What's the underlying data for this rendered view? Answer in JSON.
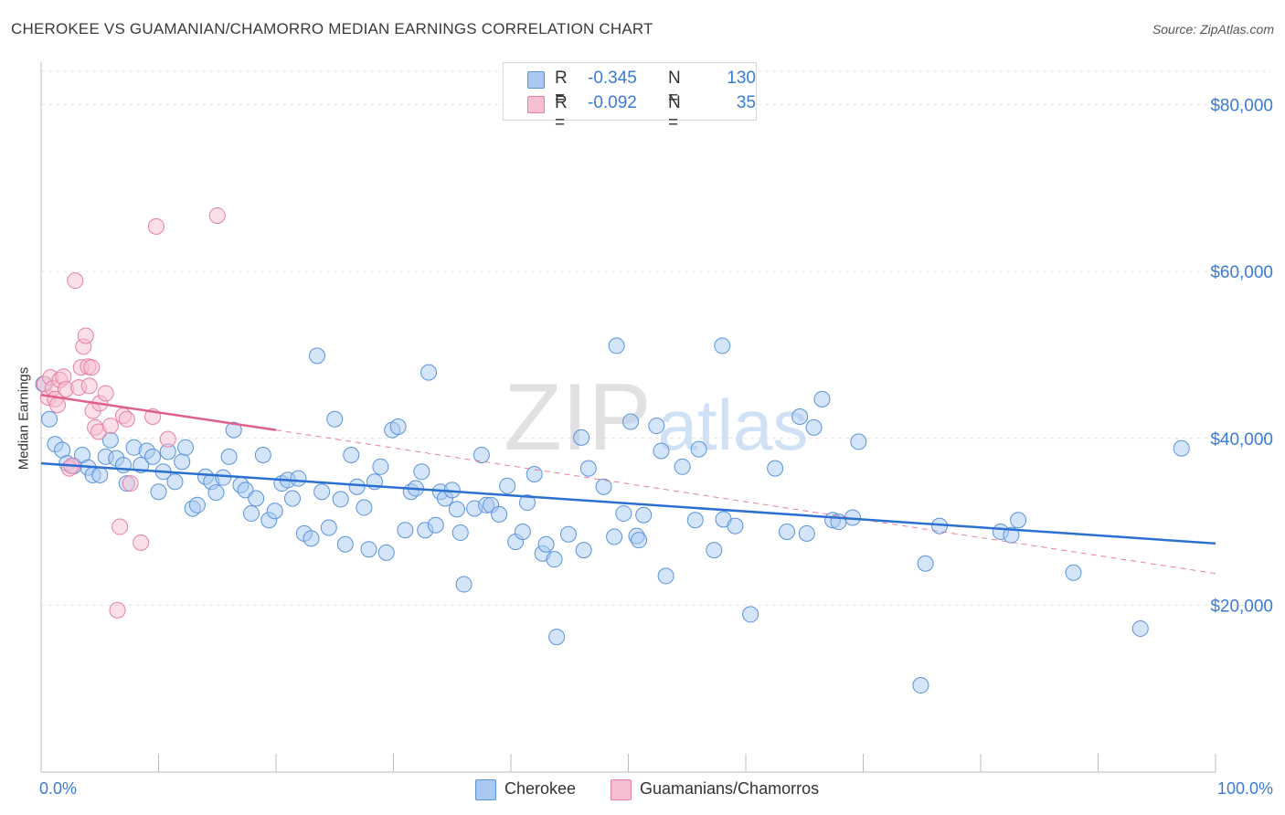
{
  "header": {
    "title": "CHEROKEE VS GUAMANIAN/CHAMORRO MEDIAN EARNINGS CORRELATION CHART",
    "source": "Source: ZipAtlas.com"
  },
  "watermark": {
    "zip": "ZIP",
    "atlas": "atlas"
  },
  "legend": {
    "rows": [
      {
        "r_label": "R =",
        "r_value": "-0.345",
        "n_label": "N =",
        "n_value": "130"
      },
      {
        "r_label": "R =",
        "r_value": "-0.092",
        "n_label": "N =",
        "n_value": "35"
      }
    ],
    "bottom": [
      "Cherokee",
      "Guamanians/Chamorros"
    ]
  },
  "colors": {
    "cherokee_fill": "#a9c9f3",
    "cherokee_stroke": "#5b93db",
    "cherokee_line": "#2b6fd0",
    "guam_fill": "#f7bfd2",
    "guam_stroke": "#e87fa4",
    "guam_line": "#e0608c",
    "tick_label": "#3a7bd5",
    "grid": "#e3e3e3"
  },
  "chart_data": {
    "type": "scatter",
    "title": "CHEROKEE VS GUAMANIAN/CHAMORRO MEDIAN EARNINGS CORRELATION CHART",
    "xlabel": "",
    "ylabel": "Median Earnings",
    "xlim": [
      0,
      100
    ],
    "ylim": [
      0,
      84000
    ],
    "x_tick_labels": [
      "0.0%",
      "100.0%"
    ],
    "y_ticks": [
      20000,
      40000,
      60000,
      80000
    ],
    "y_tick_labels": [
      "$20,000",
      "$40,000",
      "$60,000",
      "$80,000"
    ],
    "grid": true,
    "legend_position": "top-center",
    "series": [
      {
        "name": "Cherokee",
        "r": -0.345,
        "n": 130,
        "trend": {
          "x": [
            0,
            100
          ],
          "y": [
            37000,
            27400
          ],
          "style": "solid"
        },
        "points": [
          [
            0.7,
            42300
          ],
          [
            1.2,
            39300
          ],
          [
            1.8,
            38600
          ],
          [
            2.2,
            37000
          ],
          [
            2.8,
            36700
          ],
          [
            3.5,
            38000
          ],
          [
            4.0,
            36500
          ],
          [
            4.4,
            35600
          ],
          [
            5.0,
            35600
          ],
          [
            5.5,
            37800
          ],
          [
            5.9,
            39800
          ],
          [
            6.4,
            37600
          ],
          [
            7.0,
            36800
          ],
          [
            7.3,
            34600
          ],
          [
            7.9,
            38900
          ],
          [
            8.5,
            36800
          ],
          [
            9.0,
            38500
          ],
          [
            9.5,
            37800
          ],
          [
            10.0,
            33600
          ],
          [
            10.4,
            36000
          ],
          [
            10.8,
            38400
          ],
          [
            11.4,
            34800
          ],
          [
            12.0,
            37200
          ],
          [
            12.3,
            38900
          ],
          [
            12.9,
            31600
          ],
          [
            13.3,
            32000
          ],
          [
            14.0,
            35400
          ],
          [
            14.5,
            34800
          ],
          [
            14.9,
            33500
          ],
          [
            15.5,
            35300
          ],
          [
            16.0,
            37800
          ],
          [
            16.4,
            41000
          ],
          [
            17.0,
            34400
          ],
          [
            17.4,
            33800
          ],
          [
            17.9,
            31000
          ],
          [
            18.3,
            32800
          ],
          [
            18.9,
            38000
          ],
          [
            19.4,
            30200
          ],
          [
            19.9,
            31300
          ],
          [
            20.5,
            34600
          ],
          [
            21.0,
            35000
          ],
          [
            21.4,
            32800
          ],
          [
            21.9,
            35200
          ],
          [
            22.4,
            28600
          ],
          [
            23.0,
            28000
          ],
          [
            23.5,
            49900
          ],
          [
            23.9,
            33600
          ],
          [
            24.5,
            29300
          ],
          [
            25.0,
            42300
          ],
          [
            25.5,
            32700
          ],
          [
            25.9,
            27300
          ],
          [
            26.4,
            38000
          ],
          [
            26.9,
            34200
          ],
          [
            27.5,
            31700
          ],
          [
            27.9,
            26700
          ],
          [
            28.4,
            34800
          ],
          [
            28.9,
            36600
          ],
          [
            29.4,
            26300
          ],
          [
            29.9,
            41000
          ],
          [
            30.4,
            41400
          ],
          [
            31.0,
            29000
          ],
          [
            31.5,
            33600
          ],
          [
            31.9,
            34000
          ],
          [
            32.4,
            36000
          ],
          [
            32.7,
            29000
          ],
          [
            33.0,
            47900
          ],
          [
            33.6,
            29600
          ],
          [
            34.0,
            33600
          ],
          [
            34.4,
            32800
          ],
          [
            35.0,
            33800
          ],
          [
            35.4,
            31500
          ],
          [
            35.7,
            28700
          ],
          [
            36.0,
            22500
          ],
          [
            36.9,
            31600
          ],
          [
            37.5,
            38000
          ],
          [
            37.9,
            32000
          ],
          [
            38.3,
            32000
          ],
          [
            39.0,
            30900
          ],
          [
            39.7,
            34300
          ],
          [
            40.4,
            27600
          ],
          [
            41.0,
            28800
          ],
          [
            41.4,
            32300
          ],
          [
            42.0,
            35700
          ],
          [
            42.7,
            26200
          ],
          [
            43.0,
            27300
          ],
          [
            43.7,
            25500
          ],
          [
            43.9,
            16200
          ],
          [
            44.9,
            28500
          ],
          [
            46.0,
            40100
          ],
          [
            46.2,
            26600
          ],
          [
            46.6,
            36400
          ],
          [
            47.9,
            34200
          ],
          [
            48.8,
            28200
          ],
          [
            49.0,
            51100
          ],
          [
            49.6,
            31000
          ],
          [
            50.2,
            42000
          ],
          [
            50.7,
            28300
          ],
          [
            50.9,
            27800
          ],
          [
            51.3,
            30800
          ],
          [
            52.4,
            41500
          ],
          [
            52.8,
            38500
          ],
          [
            53.2,
            23500
          ],
          [
            54.6,
            36600
          ],
          [
            55.7,
            30200
          ],
          [
            56.0,
            38700
          ],
          [
            57.3,
            26600
          ],
          [
            58.0,
            51100
          ],
          [
            58.1,
            30300
          ],
          [
            59.1,
            29500
          ],
          [
            60.4,
            18900
          ],
          [
            62.5,
            36400
          ],
          [
            63.5,
            28800
          ],
          [
            64.6,
            42600
          ],
          [
            65.2,
            28600
          ],
          [
            65.8,
            41300
          ],
          [
            66.5,
            44700
          ],
          [
            67.4,
            30200
          ],
          [
            67.9,
            30000
          ],
          [
            69.1,
            30500
          ],
          [
            69.6,
            39600
          ],
          [
            74.9,
            10400
          ],
          [
            75.3,
            25000
          ],
          [
            76.5,
            29500
          ],
          [
            81.7,
            28800
          ],
          [
            82.6,
            28400
          ],
          [
            83.2,
            30200
          ],
          [
            87.9,
            23900
          ],
          [
            93.6,
            17200
          ],
          [
            97.1,
            38800
          ],
          [
            0.2,
            46500
          ]
        ]
      },
      {
        "name": "Guamanians/Chamorros",
        "r": -0.092,
        "n": 35,
        "trend": {
          "x": [
            0,
            20
          ],
          "y": [
            45200,
            41000
          ],
          "style": "solid",
          "extended": {
            "x": [
              20,
              100
            ],
            "y": [
              41000,
              23800
            ],
            "style": "dashed"
          }
        },
        "points": [
          [
            0.3,
            46500
          ],
          [
            0.6,
            44900
          ],
          [
            0.8,
            47300
          ],
          [
            1.0,
            46000
          ],
          [
            1.2,
            44700
          ],
          [
            1.4,
            44000
          ],
          [
            1.6,
            47000
          ],
          [
            1.9,
            47400
          ],
          [
            2.1,
            45900
          ],
          [
            2.4,
            36400
          ],
          [
            2.6,
            36700
          ],
          [
            2.9,
            58900
          ],
          [
            3.2,
            46100
          ],
          [
            3.4,
            48500
          ],
          [
            3.6,
            51000
          ],
          [
            3.8,
            52300
          ],
          [
            4.0,
            48600
          ],
          [
            4.1,
            46300
          ],
          [
            4.3,
            48500
          ],
          [
            4.4,
            43300
          ],
          [
            4.6,
            41300
          ],
          [
            4.9,
            40800
          ],
          [
            5.0,
            44200
          ],
          [
            5.5,
            45400
          ],
          [
            5.9,
            41500
          ],
          [
            6.5,
            19400
          ],
          [
            6.7,
            29400
          ],
          [
            7.0,
            42700
          ],
          [
            7.3,
            42300
          ],
          [
            7.6,
            34600
          ],
          [
            8.5,
            27500
          ],
          [
            9.5,
            42600
          ],
          [
            9.8,
            65400
          ],
          [
            10.8,
            39900
          ],
          [
            15.0,
            66700
          ]
        ]
      }
    ]
  }
}
